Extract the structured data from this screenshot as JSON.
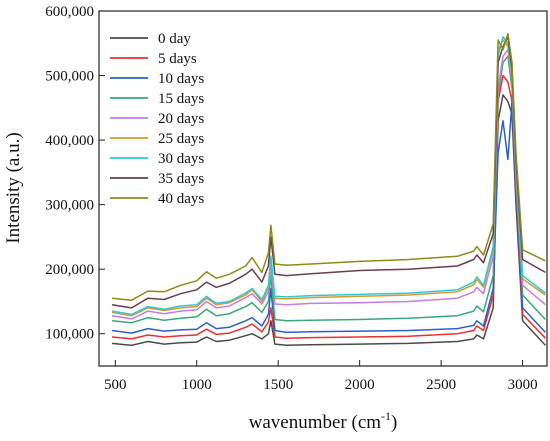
{
  "chart_data": {
    "type": "line",
    "title": "",
    "xlabel": "wavenumber",
    "xlabel_unit_base": "(cm",
    "xlabel_unit_exp": "-1",
    "xlabel_unit_close": ")",
    "ylabel": "Intensity (a.u.)",
    "xlim": [
      400,
      3150
    ],
    "ylim": [
      50000,
      600000
    ],
    "x_ticks": [
      500,
      1000,
      1500,
      2000,
      2500,
      3000
    ],
    "x_tick_labels": [
      "500",
      "1000",
      "1500",
      "2000",
      "2500",
      "3000"
    ],
    "y_ticks": [
      100000,
      200000,
      300000,
      400000,
      500000,
      600000
    ],
    "y_tick_labels": [
      "100,000",
      "200,000",
      "300,000",
      "400,000",
      "500,000",
      "600,000"
    ],
    "grid": false,
    "legend_position": "top-left",
    "x": [
      480,
      600,
      700,
      800,
      900,
      1000,
      1060,
      1120,
      1200,
      1300,
      1340,
      1400,
      1440,
      1455,
      1480,
      1550,
      1700,
      2000,
      2300,
      2600,
      2700,
      2720,
      2760,
      2820,
      2850,
      2880,
      2910,
      2935,
      2960,
      3000,
      3140
    ],
    "series": [
      {
        "name": "0 day",
        "color": "#4a4a4a",
        "values": [
          85000,
          82000,
          88000,
          84000,
          86000,
          87000,
          95000,
          88000,
          90000,
          97000,
          100000,
          92000,
          100000,
          120000,
          84000,
          82000,
          83000,
          84000,
          85000,
          88000,
          92000,
          98000,
          92000,
          140000,
          430000,
          470000,
          460000,
          440000,
          300000,
          120000,
          82000
        ]
      },
      {
        "name": "5 days",
        "color": "#e8312f",
        "values": [
          95000,
          92000,
          98000,
          95000,
          97000,
          98000,
          107000,
          99000,
          101000,
          110000,
          115000,
          103000,
          118000,
          140000,
          95000,
          93000,
          94000,
          95000,
          96000,
          100000,
          105000,
          112000,
          105000,
          160000,
          460000,
          500000,
          490000,
          460000,
          320000,
          130000,
          93000
        ]
      },
      {
        "name": "10 days",
        "color": "#2b5fcb",
        "values": [
          105000,
          101000,
          108000,
          104000,
          106000,
          107000,
          117000,
          108000,
          110000,
          120000,
          125000,
          112000,
          130000,
          170000,
          105000,
          102000,
          103000,
          104000,
          105000,
          108000,
          113000,
          120000,
          112000,
          170000,
          380000,
          430000,
          370000,
          460000,
          330000,
          140000,
          102000
        ]
      },
      {
        "name": "15 days",
        "color": "#3aa77a",
        "values": [
          120000,
          117000,
          125000,
          121000,
          124000,
          126000,
          138000,
          128000,
          131000,
          142000,
          148000,
          133000,
          150000,
          190000,
          122000,
          120000,
          121000,
          122000,
          124000,
          128000,
          135000,
          143000,
          134000,
          190000,
          470000,
          520000,
          530000,
          480000,
          340000,
          160000,
          122000
        ]
      },
      {
        "name": "20 days",
        "color": "#c77ce0",
        "values": [
          128000,
          123000,
          135000,
          131000,
          135000,
          137000,
          150000,
          140000,
          143000,
          156000,
          162000,
          146000,
          165000,
          205000,
          146000,
          145000,
          147000,
          148000,
          150000,
          155000,
          165000,
          172000,
          162000,
          220000,
          480000,
          530000,
          540000,
          490000,
          350000,
          175000,
          145000
        ]
      },
      {
        "name": "25 days",
        "color": "#d79a2a",
        "values": [
          133000,
          128000,
          140000,
          136000,
          140000,
          142000,
          155000,
          145000,
          148000,
          160000,
          168000,
          150000,
          172000,
          215000,
          155000,
          154000,
          156000,
          158000,
          160000,
          165000,
          176000,
          184000,
          172000,
          230000,
          540000,
          555000,
          545000,
          500000,
          360000,
          185000,
          160000
        ]
      },
      {
        "name": "30 days",
        "color": "#2fc9d6",
        "values": [
          135000,
          130000,
          142000,
          138000,
          143000,
          145000,
          158000,
          147000,
          150000,
          163000,
          170000,
          153000,
          175000,
          220000,
          158000,
          157000,
          159000,
          161000,
          163000,
          168000,
          180000,
          188000,
          175000,
          235000,
          530000,
          560000,
          550000,
          505000,
          365000,
          190000,
          163000
        ]
      },
      {
        "name": "35 days",
        "color": "#6a3e4c",
        "values": [
          145000,
          140000,
          155000,
          153000,
          162000,
          168000,
          180000,
          172000,
          178000,
          192000,
          200000,
          180000,
          205000,
          250000,
          192000,
          190000,
          193000,
          198000,
          200000,
          205000,
          215000,
          222000,
          210000,
          255000,
          520000,
          545000,
          560000,
          510000,
          370000,
          215000,
          195000
        ]
      },
      {
        "name": "40 days",
        "color": "#8b8b18",
        "values": [
          155000,
          152000,
          166000,
          165000,
          175000,
          182000,
          196000,
          186000,
          192000,
          205000,
          218000,
          195000,
          225000,
          268000,
          208000,
          206000,
          208000,
          212000,
          215000,
          220000,
          228000,
          235000,
          222000,
          270000,
          555000,
          540000,
          565000,
          520000,
          380000,
          230000,
          213000
        ]
      }
    ]
  }
}
